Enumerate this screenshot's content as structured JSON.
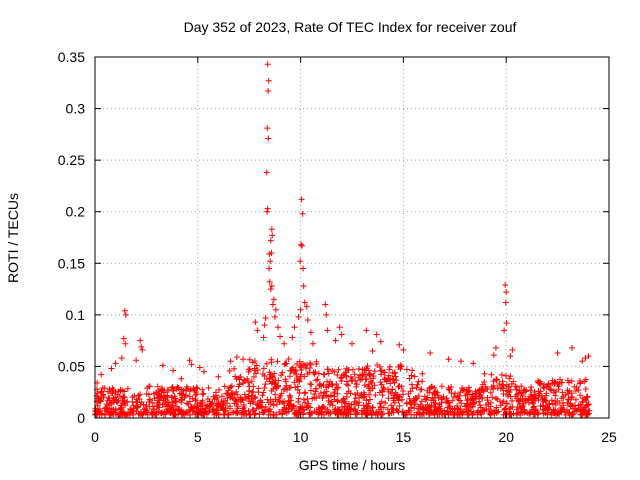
{
  "chart_data": {
    "type": "scatter",
    "title": "Day 352 of 2023, Rate Of TEC Index for receiver zouf",
    "xlabel": "GPS time / hours",
    "ylabel": "ROTI / TECUs",
    "xlim": [
      0,
      25
    ],
    "ylim": [
      0,
      0.35
    ],
    "grid": true,
    "marker": "+",
    "color": "#ff0000",
    "x_ticks": [
      "0",
      "5",
      "10",
      "15",
      "20",
      "25"
    ],
    "y_ticks": [
      "0",
      "0.05",
      "0.1",
      "0.15",
      "0.2",
      "0.25",
      "0.3",
      "0.35"
    ],
    "series": [
      {
        "name": "ROTI",
        "points": [
          [
            8.4,
            0.343
          ],
          [
            8.45,
            0.327
          ],
          [
            8.42,
            0.317
          ],
          [
            8.38,
            0.281
          ],
          [
            8.43,
            0.271
          ],
          [
            8.35,
            0.238
          ],
          [
            8.4,
            0.203
          ],
          [
            8.37,
            0.2
          ],
          [
            8.6,
            0.183
          ],
          [
            8.62,
            0.177
          ],
          [
            8.55,
            0.172
          ],
          [
            8.58,
            0.16
          ],
          [
            8.48,
            0.159
          ],
          [
            8.52,
            0.152
          ],
          [
            8.47,
            0.145
          ],
          [
            8.5,
            0.132
          ],
          [
            8.6,
            0.128
          ],
          [
            8.55,
            0.125
          ],
          [
            8.7,
            0.115
          ],
          [
            8.65,
            0.11
          ],
          [
            8.8,
            0.105
          ],
          [
            8.75,
            0.098
          ],
          [
            8.3,
            0.097
          ],
          [
            8.25,
            0.09
          ],
          [
            7.8,
            0.093
          ],
          [
            7.9,
            0.085
          ],
          [
            8.9,
            0.088
          ],
          [
            9.0,
            0.079
          ],
          [
            9.2,
            0.072
          ],
          [
            8.2,
            0.078
          ],
          [
            10.05,
            0.212
          ],
          [
            10.1,
            0.198
          ],
          [
            10.02,
            0.168
          ],
          [
            10.07,
            0.167
          ],
          [
            9.98,
            0.152
          ],
          [
            10.12,
            0.145
          ],
          [
            10.15,
            0.128
          ],
          [
            10.2,
            0.112
          ],
          [
            10.3,
            0.108
          ],
          [
            10.35,
            0.095
          ],
          [
            10.0,
            0.105
          ],
          [
            9.9,
            0.098
          ],
          [
            9.7,
            0.088
          ],
          [
            9.6,
            0.078
          ],
          [
            10.5,
            0.083
          ],
          [
            10.6,
            0.072
          ],
          [
            11.2,
            0.11
          ],
          [
            11.25,
            0.1
          ],
          [
            11.3,
            0.085
          ],
          [
            11.9,
            0.088
          ],
          [
            12.0,
            0.081
          ],
          [
            11.7,
            0.075
          ],
          [
            12.5,
            0.072
          ],
          [
            13.2,
            0.085
          ],
          [
            13.7,
            0.081
          ],
          [
            13.9,
            0.074
          ],
          [
            13.5,
            0.065
          ],
          [
            14.8,
            0.071
          ],
          [
            15.0,
            0.066
          ],
          [
            16.3,
            0.063
          ],
          [
            17.2,
            0.057
          ],
          [
            17.8,
            0.055
          ],
          [
            18.4,
            0.053
          ],
          [
            19.95,
            0.129
          ],
          [
            20.0,
            0.122
          ],
          [
            19.98,
            0.112
          ],
          [
            20.02,
            0.092
          ],
          [
            19.9,
            0.085
          ],
          [
            19.5,
            0.068
          ],
          [
            19.4,
            0.061
          ],
          [
            20.3,
            0.066
          ],
          [
            20.2,
            0.06
          ],
          [
            22.5,
            0.063
          ],
          [
            23.2,
            0.068
          ],
          [
            23.7,
            0.055
          ],
          [
            24.0,
            0.06
          ],
          [
            23.85,
            0.058
          ],
          [
            1.45,
            0.104
          ],
          [
            1.5,
            0.1
          ],
          [
            1.4,
            0.077
          ],
          [
            1.48,
            0.072
          ],
          [
            1.3,
            0.058
          ],
          [
            2.2,
            0.075
          ],
          [
            2.25,
            0.069
          ],
          [
            2.3,
            0.066
          ],
          [
            2.0,
            0.056
          ],
          [
            3.3,
            0.051
          ],
          [
            4.6,
            0.056
          ],
          [
            4.7,
            0.052
          ],
          [
            5.1,
            0.049
          ],
          [
            5.3,
            0.045
          ],
          [
            6.6,
            0.055
          ],
          [
            6.9,
            0.059
          ],
          [
            7.2,
            0.057
          ],
          [
            0.1,
            0.034
          ],
          [
            0.3,
            0.042
          ],
          [
            0.8,
            0.048
          ],
          [
            1.0,
            0.053
          ],
          [
            3.8,
            0.046
          ],
          [
            4.2,
            0.038
          ],
          [
            6.0,
            0.04
          ]
        ]
      }
    ]
  }
}
